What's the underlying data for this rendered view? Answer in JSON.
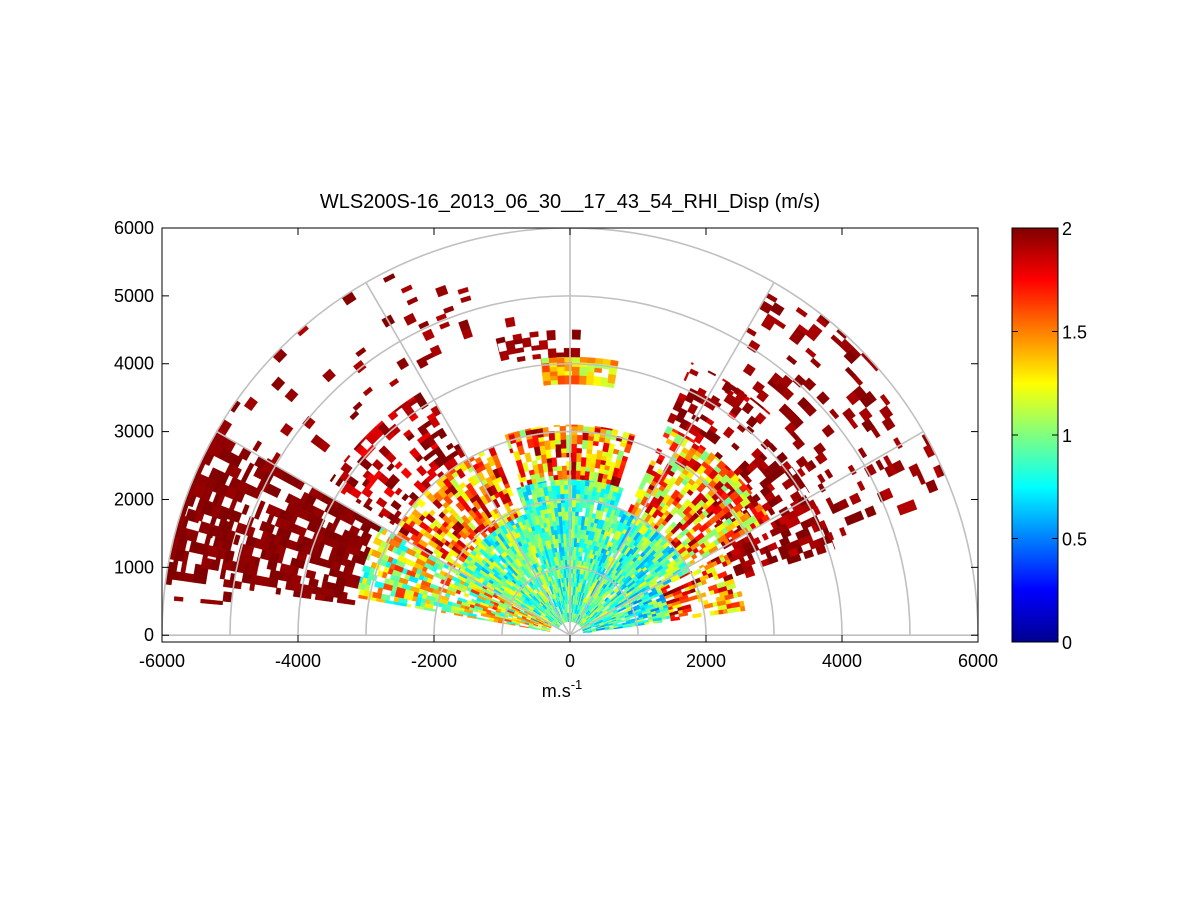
{
  "chart_data": {
    "type": "heatmap",
    "subtype": "polar-rhi",
    "title": "WLS200S-16_2013_06_30__17_43_54_RHI_Disp (m/s)",
    "xlabel": "m.s",
    "xlabel_superscript": "-1",
    "ylabel": "",
    "xlim": [
      -6000,
      6000
    ],
    "ylim": [
      -100,
      6000
    ],
    "x_ticks": [
      -6000,
      -4000,
      -2000,
      0,
      2000,
      4000,
      6000
    ],
    "x_tick_labels": [
      "-6000",
      "-4000",
      "-2000",
      "0",
      "2000",
      "4000",
      "6000"
    ],
    "y_ticks": [
      0,
      1000,
      2000,
      3000,
      4000,
      5000,
      6000
    ],
    "y_tick_labels": [
      "0",
      "1000",
      "2000",
      "3000",
      "4000",
      "5000",
      "6000"
    ],
    "polar_grid": {
      "range_rings": [
        1000,
        2000,
        3000,
        4000,
        5000,
        6000
      ],
      "spokes_deg": [
        0,
        30,
        60,
        90,
        120,
        150,
        180
      ]
    },
    "colorbar": {
      "min": 0,
      "max": 2,
      "ticks": [
        0,
        0.5,
        1,
        1.5,
        2
      ],
      "tick_labels": [
        "0",
        "0.5",
        "1",
        "1.5",
        "2"
      ],
      "colormap": "jet"
    },
    "sectors": [
      {
        "az_from": 8,
        "az_to": 28,
        "r_from": 200,
        "r_to": 1500,
        "mean": 0.85,
        "spread": 0.35,
        "fill": 0.95
      },
      {
        "az_from": 8,
        "az_to": 28,
        "r_from": 1500,
        "r_to": 2600,
        "mean": 1.55,
        "spread": 0.45,
        "fill": 0.6
      },
      {
        "az_from": 18,
        "az_to": 45,
        "r_from": 2600,
        "r_to": 4100,
        "mean": 1.95,
        "spread": 0.1,
        "fill": 0.55
      },
      {
        "az_from": 28,
        "az_to": 70,
        "r_from": 200,
        "r_to": 2000,
        "mean": 0.9,
        "spread": 0.35,
        "fill": 0.97
      },
      {
        "az_from": 30,
        "az_to": 65,
        "r_from": 2000,
        "r_to": 3400,
        "mean": 1.45,
        "spread": 0.5,
        "fill": 0.75
      },
      {
        "az_from": 48,
        "az_to": 66,
        "r_from": 3400,
        "r_to": 4400,
        "mean": 1.9,
        "spread": 0.15,
        "fill": 0.35
      },
      {
        "az_from": 70,
        "az_to": 110,
        "r_from": 200,
        "r_to": 2300,
        "mean": 0.9,
        "spread": 0.3,
        "fill": 0.98
      },
      {
        "az_from": 72,
        "az_to": 108,
        "r_from": 2300,
        "r_to": 3100,
        "mean": 1.5,
        "spread": 0.5,
        "fill": 0.8
      },
      {
        "az_from": 80,
        "az_to": 96,
        "r_from": 3700,
        "r_to": 4100,
        "mean": 1.35,
        "spread": 0.3,
        "fill": 0.9
      },
      {
        "az_from": 88,
        "az_to": 104,
        "r_from": 4100,
        "r_to": 4500,
        "mean": 1.95,
        "spread": 0.05,
        "fill": 0.6
      },
      {
        "az_from": 110,
        "az_to": 152,
        "r_from": 200,
        "r_to": 1900,
        "mean": 0.95,
        "spread": 0.35,
        "fill": 0.97
      },
      {
        "az_from": 112,
        "az_to": 150,
        "r_from": 1900,
        "r_to": 3000,
        "mean": 1.55,
        "spread": 0.45,
        "fill": 0.75
      },
      {
        "az_from": 120,
        "az_to": 148,
        "r_from": 3000,
        "r_to": 4200,
        "mean": 1.9,
        "spread": 0.15,
        "fill": 0.4
      },
      {
        "az_from": 150,
        "az_to": 170,
        "r_from": 300,
        "r_to": 3200,
        "mean": 1.2,
        "spread": 0.5,
        "fill": 0.8
      },
      {
        "az_from": 150,
        "az_to": 172,
        "r_from": 3200,
        "r_to": 6000,
        "mean": 1.98,
        "spread": 0.03,
        "fill": 0.7
      },
      {
        "az_from": 160,
        "az_to": 175,
        "r_from": 5000,
        "r_to": 6000,
        "mean": 1.98,
        "spread": 0.03,
        "fill": 0.25
      },
      {
        "az_from": 20,
        "az_to": 60,
        "r_from": 4000,
        "r_to": 6000,
        "mean": 1.95,
        "spread": 0.05,
        "fill": 0.18
      },
      {
        "az_from": 100,
        "az_to": 150,
        "r_from": 4500,
        "r_to": 6000,
        "mean": 1.95,
        "spread": 0.05,
        "fill": 0.1
      }
    ]
  }
}
